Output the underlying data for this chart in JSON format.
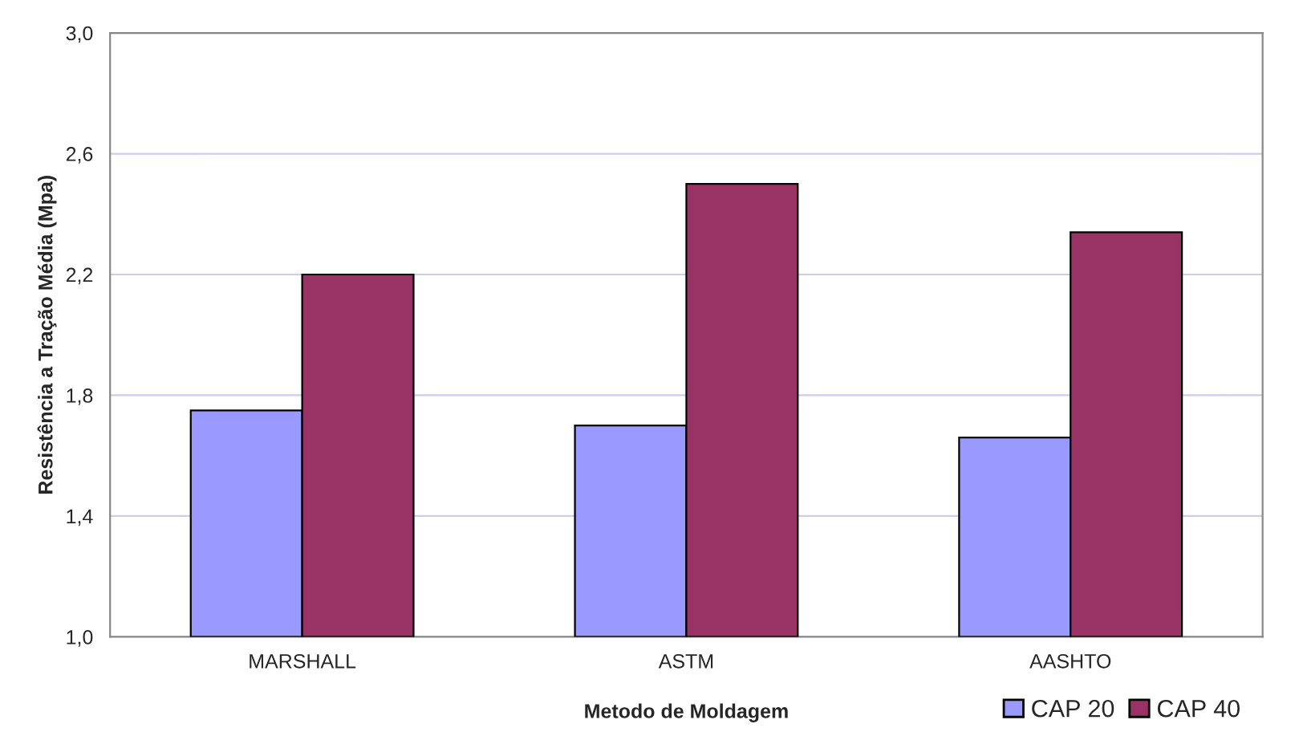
{
  "chart_data": {
    "type": "bar",
    "xlabel": "Metodo de Moldagem",
    "ylabel": "Resistência a Tração Média (Mpa)",
    "categories": [
      "MARSHALL",
      "ASTM",
      "AASHTO"
    ],
    "series": [
      {
        "name": "CAP 20",
        "color": "#9999ff",
        "values": [
          1.75,
          1.7,
          1.66
        ]
      },
      {
        "name": "CAP 40",
        "color": "#993366",
        "values": [
          2.2,
          2.5,
          2.34
        ]
      }
    ],
    "ylim": [
      1.0,
      3.0
    ],
    "yticks": [
      {
        "value": 1.0,
        "label": "1,0"
      },
      {
        "value": 1.4,
        "label": "1,4"
      },
      {
        "value": 1.8,
        "label": "1,8"
      },
      {
        "value": 2.2,
        "label": "2,2"
      },
      {
        "value": 2.6,
        "label": "2,6"
      },
      {
        "value": 3.0,
        "label": "3,0"
      }
    ],
    "grid": "y",
    "legend": "bottom right"
  }
}
